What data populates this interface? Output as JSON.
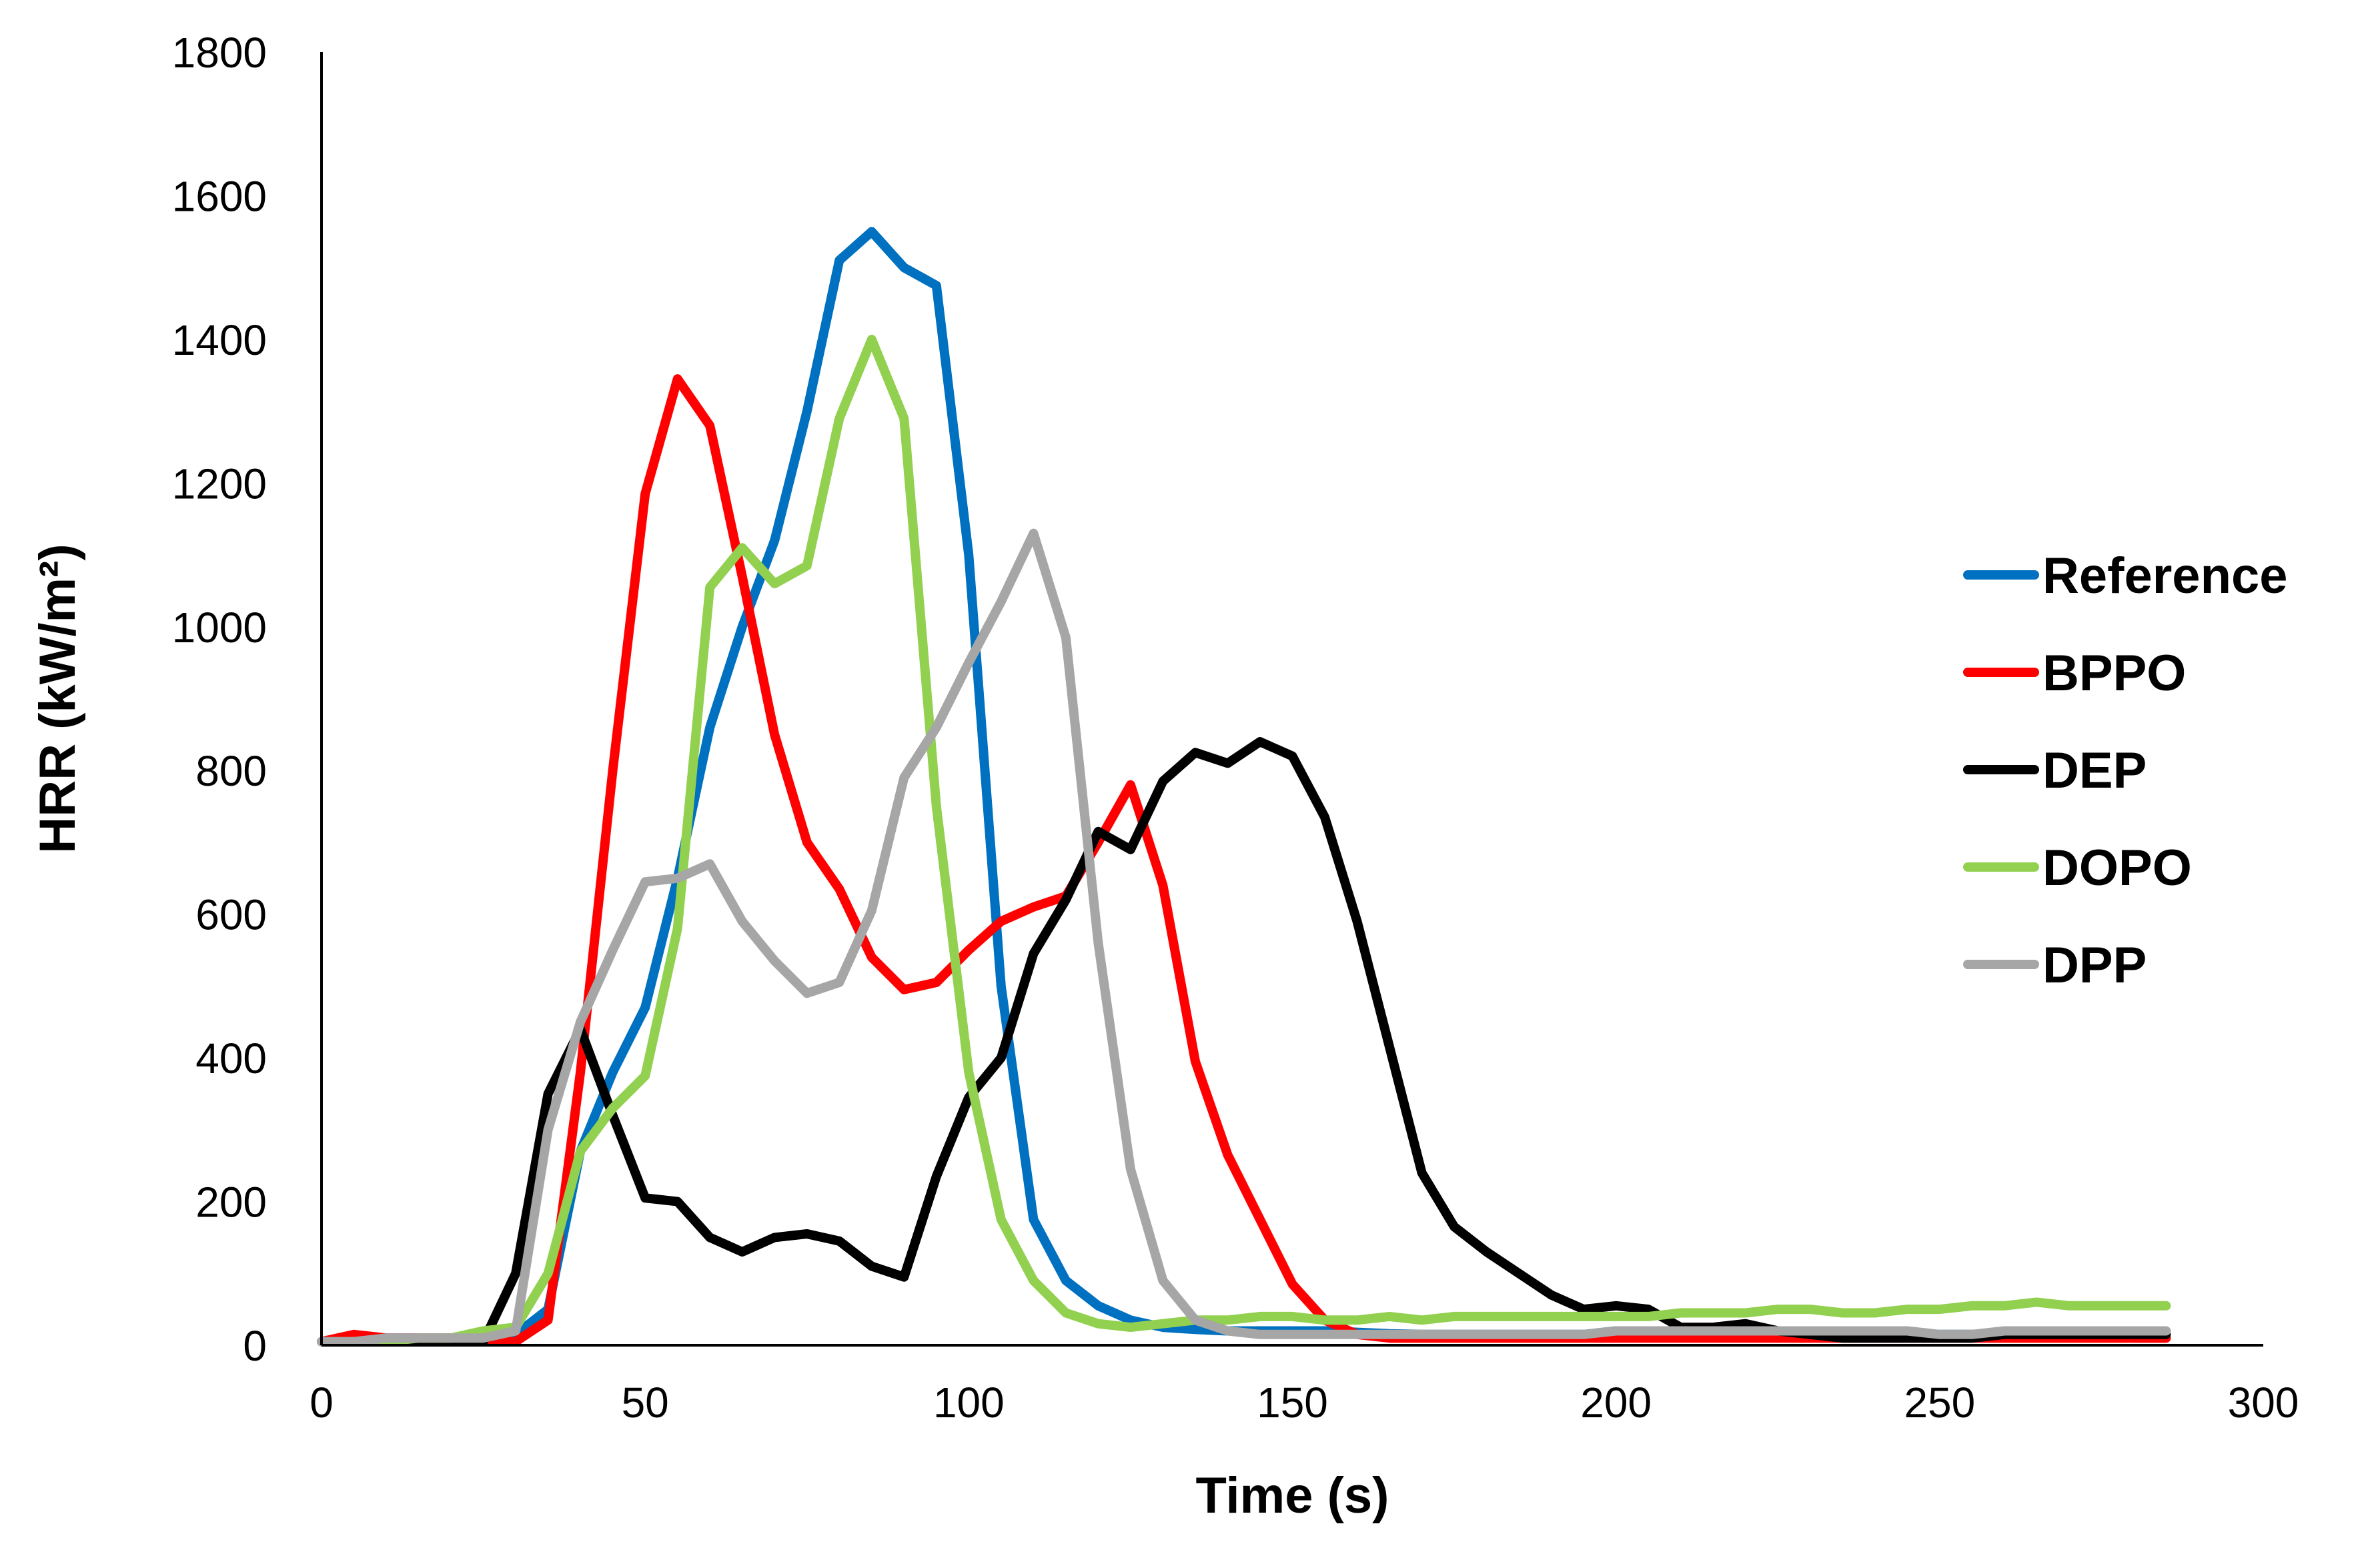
{
  "chart_data": {
    "type": "line",
    "title": "",
    "xlabel": "Time (s)",
    "ylabel": "HRR (kW/m²)",
    "xlim": [
      0,
      300
    ],
    "ylim": [
      0,
      1800
    ],
    "x_ticks": [
      0,
      50,
      100,
      150,
      200,
      250,
      300
    ],
    "y_ticks": [
      0,
      200,
      400,
      600,
      800,
      1000,
      1200,
      1400,
      1600,
      1800
    ],
    "x_tick_labels": [
      "0",
      "50",
      "100",
      "150",
      "200",
      "250",
      "300"
    ],
    "y_tick_labels": [
      "0",
      "200",
      "400",
      "600",
      "800",
      "1000",
      "1200",
      "1400",
      "1600",
      "1800"
    ],
    "grid": false,
    "legend_position": "right",
    "series": [
      {
        "name": "Reference",
        "color": "#0070C0",
        "x": [
          0,
          5,
          10,
          15,
          20,
          25,
          30,
          35,
          40,
          45,
          50,
          55,
          60,
          65,
          70,
          75,
          80,
          85,
          90,
          95,
          100,
          105,
          110,
          115,
          120,
          125,
          130,
          135,
          140,
          145,
          150,
          155,
          160,
          165,
          170,
          175,
          180,
          185,
          190,
          195,
          200,
          205,
          210,
          215,
          220,
          225,
          230,
          235,
          240,
          245,
          250,
          255,
          260,
          265,
          270,
          275,
          280,
          285
        ],
        "values": [
          5,
          10,
          10,
          10,
          10,
          10,
          15,
          50,
          270,
          380,
          470,
          650,
          860,
          1000,
          1120,
          1300,
          1510,
          1550,
          1500,
          1475,
          1100,
          500,
          175,
          90,
          55,
          35,
          25,
          22,
          20,
          20,
          20,
          20,
          18,
          16,
          15,
          15,
          15,
          15,
          15,
          15,
          20,
          20,
          20,
          20,
          15,
          15,
          15,
          15,
          15,
          15,
          15,
          15,
          15,
          15,
          15,
          15,
          10,
          10
        ]
      },
      {
        "name": "BPPO",
        "color": "#FF0000",
        "x": [
          0,
          5,
          10,
          15,
          20,
          25,
          30,
          35,
          40,
          45,
          50,
          55,
          60,
          65,
          70,
          75,
          80,
          85,
          90,
          95,
          100,
          105,
          110,
          115,
          120,
          125,
          130,
          135,
          140,
          145,
          150,
          155,
          160,
          165,
          170,
          175,
          180,
          185,
          190,
          195,
          200,
          205,
          210,
          215,
          220,
          225,
          230,
          235,
          240,
          245,
          250,
          255,
          260,
          265,
          270,
          275,
          280,
          285
        ],
        "values": [
          5,
          15,
          10,
          10,
          10,
          5,
          5,
          35,
          380,
          800,
          1185,
          1345,
          1280,
          1070,
          850,
          700,
          635,
          540,
          495,
          505,
          550,
          590,
          610,
          625,
          700,
          780,
          640,
          395,
          265,
          175,
          85,
          35,
          15,
          10,
          10,
          10,
          10,
          10,
          10,
          10,
          10,
          10,
          10,
          10,
          10,
          10,
          10,
          10,
          10,
          10,
          10,
          10,
          10,
          10,
          10,
          10,
          10,
          10
        ]
      },
      {
        "name": "DEP",
        "color": "#000000",
        "x": [
          0,
          5,
          10,
          15,
          20,
          25,
          30,
          35,
          40,
          45,
          50,
          55,
          60,
          65,
          70,
          75,
          80,
          85,
          90,
          95,
          100,
          105,
          110,
          115,
          120,
          125,
          130,
          135,
          140,
          145,
          150,
          155,
          160,
          165,
          170,
          175,
          180,
          185,
          190,
          195,
          200,
          205,
          210,
          215,
          220,
          225,
          230,
          235,
          240,
          245,
          250,
          255,
          260,
          265,
          270,
          275,
          280,
          285
        ],
        "values": [
          5,
          5,
          5,
          5,
          5,
          5,
          100,
          350,
          440,
          320,
          205,
          200,
          150,
          130,
          150,
          155,
          145,
          110,
          95,
          235,
          345,
          400,
          545,
          620,
          715,
          690,
          785,
          825,
          810,
          840,
          820,
          735,
          590,
          415,
          240,
          165,
          130,
          100,
          70,
          50,
          55,
          50,
          25,
          25,
          30,
          20,
          15,
          10,
          10,
          10,
          10,
          10,
          15,
          15,
          15,
          15,
          15,
          15
        ]
      },
      {
        "name": "DOPO",
        "color": "#92D050",
        "x": [
          0,
          5,
          10,
          15,
          20,
          25,
          30,
          35,
          40,
          45,
          50,
          55,
          60,
          65,
          70,
          75,
          80,
          85,
          90,
          95,
          100,
          105,
          110,
          115,
          120,
          125,
          130,
          135,
          140,
          145,
          150,
          155,
          160,
          165,
          170,
          175,
          180,
          185,
          190,
          195,
          200,
          205,
          210,
          215,
          220,
          225,
          230,
          235,
          240,
          245,
          250,
          255,
          260,
          265,
          270,
          275,
          280,
          285
        ],
        "values": [
          5,
          5,
          5,
          10,
          10,
          20,
          25,
          100,
          270,
          330,
          375,
          580,
          1055,
          1110,
          1060,
          1085,
          1290,
          1400,
          1290,
          750,
          380,
          175,
          90,
          45,
          30,
          25,
          30,
          35,
          35,
          40,
          40,
          35,
          35,
          40,
          35,
          40,
          40,
          40,
          40,
          40,
          40,
          40,
          45,
          45,
          45,
          50,
          50,
          45,
          45,
          50,
          50,
          55,
          55,
          60,
          55,
          55,
          55,
          55
        ]
      },
      {
        "name": "DPP",
        "color": "#A6A6A6",
        "x": [
          0,
          5,
          10,
          15,
          20,
          25,
          30,
          35,
          40,
          45,
          50,
          55,
          60,
          65,
          70,
          75,
          80,
          85,
          90,
          95,
          100,
          105,
          110,
          115,
          120,
          125,
          130,
          135,
          140,
          145,
          150,
          155,
          160,
          165,
          170,
          175,
          180,
          185,
          190,
          195,
          200,
          205,
          210,
          215,
          220,
          225,
          230,
          235,
          240,
          245,
          250,
          255,
          260,
          265,
          270,
          275,
          280,
          285
        ],
        "values": [
          5,
          5,
          10,
          10,
          10,
          10,
          20,
          300,
          450,
          550,
          645,
          650,
          670,
          590,
          535,
          490,
          505,
          605,
          790,
          860,
          950,
          1035,
          1130,
          985,
          560,
          245,
          90,
          35,
          20,
          15,
          15,
          15,
          15,
          15,
          15,
          15,
          15,
          15,
          15,
          15,
          20,
          20,
          20,
          20,
          20,
          20,
          20,
          20,
          20,
          20,
          15,
          15,
          20,
          20,
          20,
          20,
          20,
          20
        ]
      }
    ]
  }
}
